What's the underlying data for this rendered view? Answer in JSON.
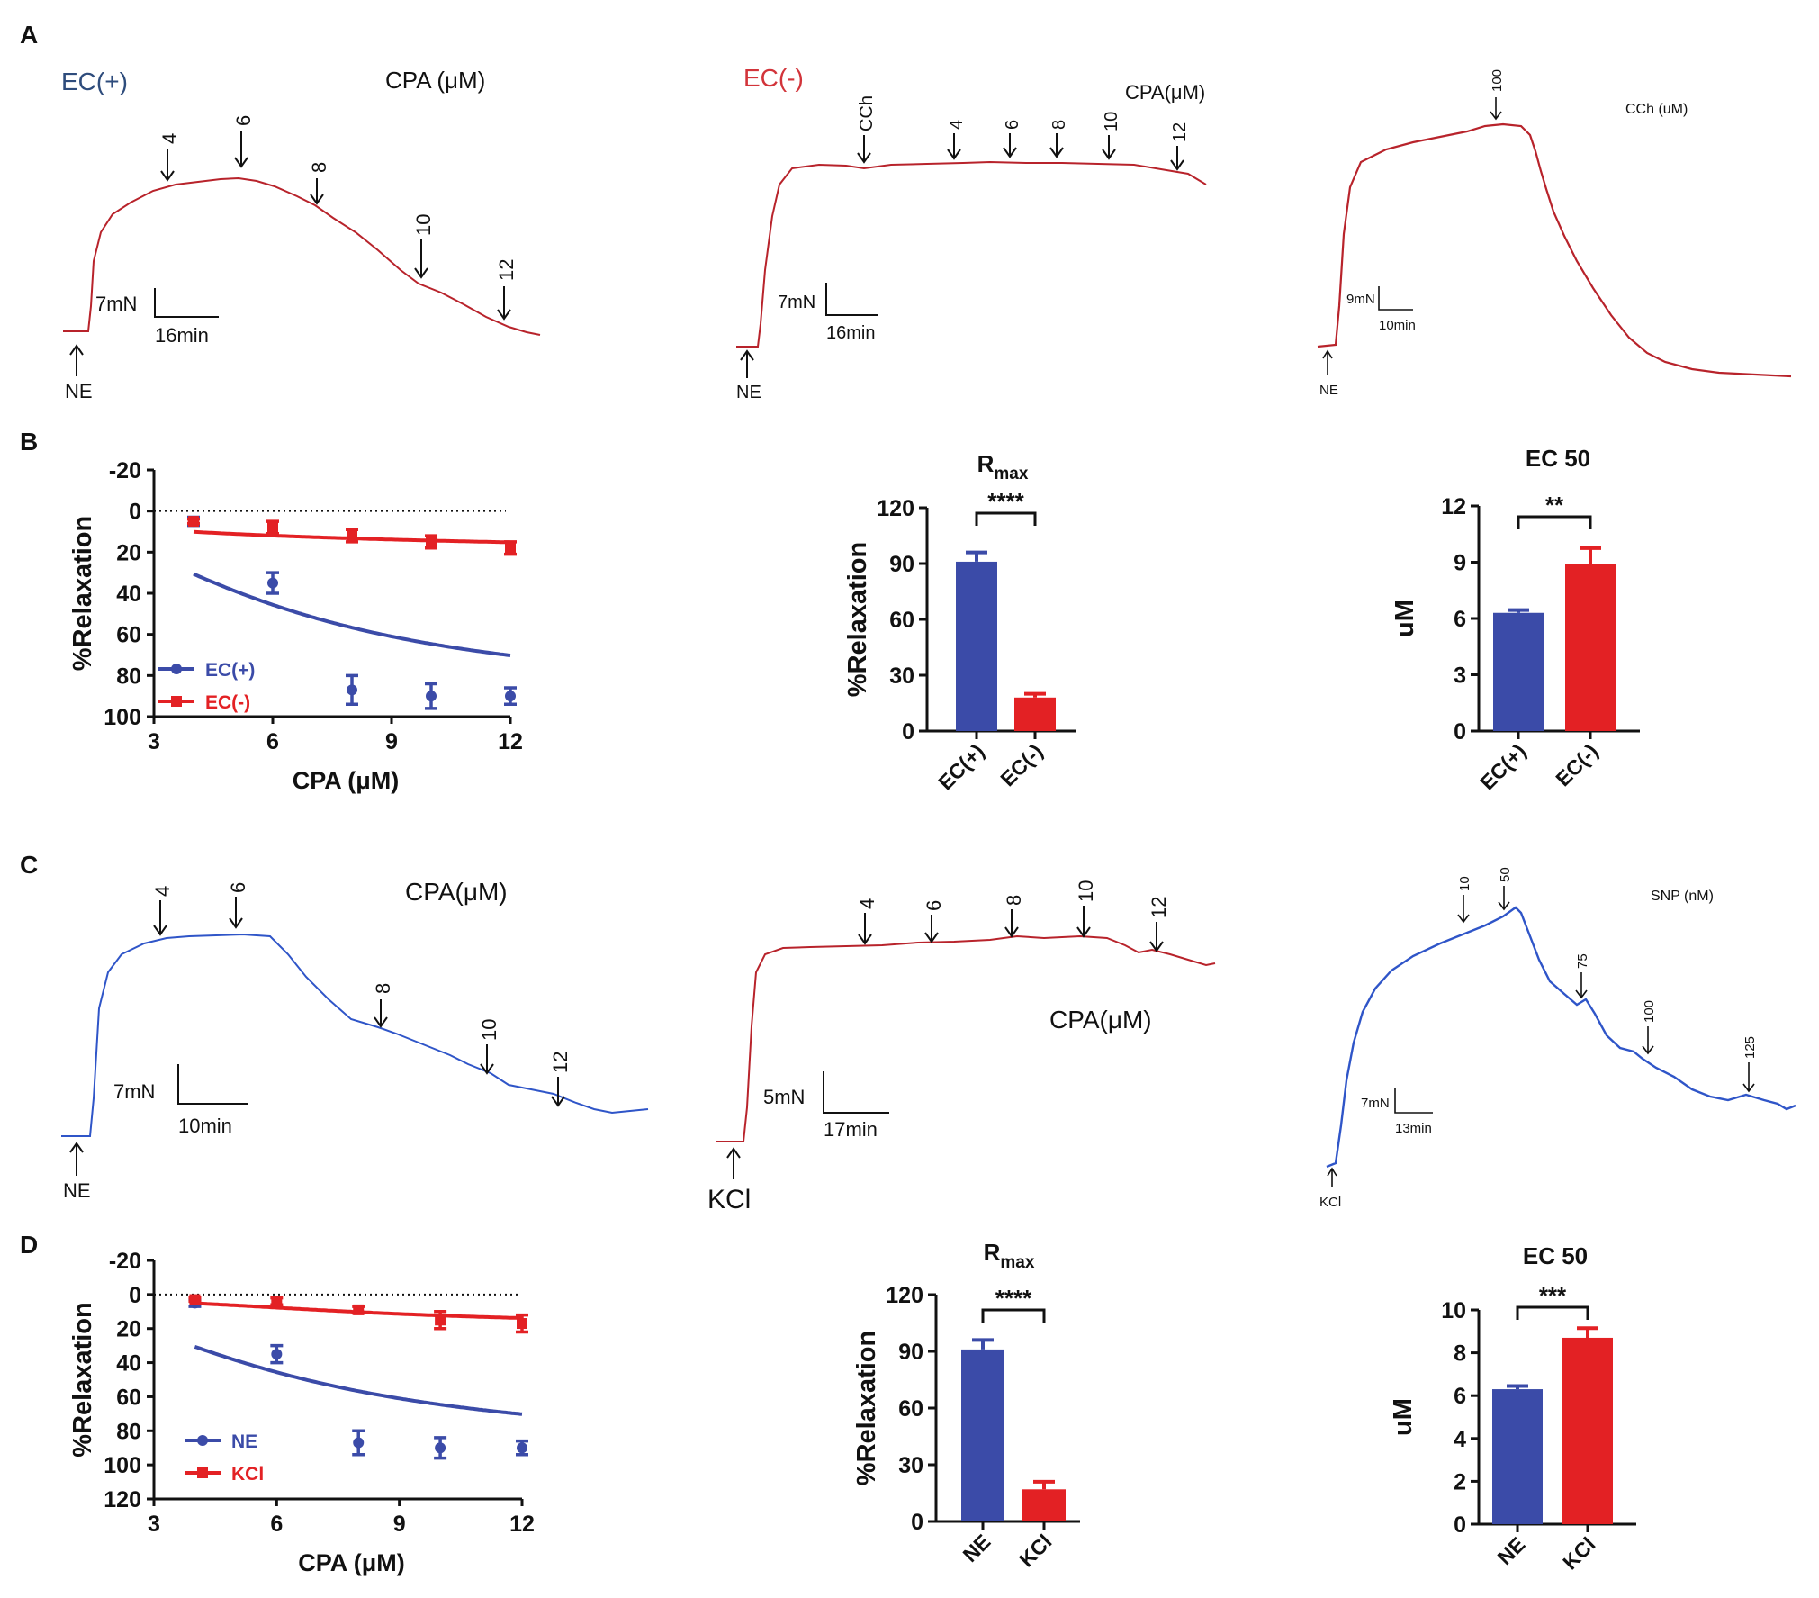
{
  "colors": {
    "blue": "#3B4BA8",
    "red": "#E32124",
    "trace_red": "#B8232B",
    "trace_blue": "#2F55C8",
    "ecplus": "#2E4C7C",
    "ecminus": "#D2343A",
    "black": "#111111"
  },
  "panel_letters": [
    "A",
    "B",
    "C",
    "D"
  ],
  "traces": [
    {
      "id": "A1",
      "header": "EC(+)",
      "label": "CPA (μM)",
      "markers": [
        "4",
        "6",
        "8",
        "10",
        "12"
      ],
      "start": "NE",
      "scale_y": "7mN",
      "scale_x": "16min"
    },
    {
      "id": "A2",
      "header": "EC(-)",
      "label": "CPA(μM)",
      "markers": [
        "CCh",
        "4",
        "6",
        "8",
        "10",
        "12"
      ],
      "start": "NE",
      "scale_y": "7mN",
      "scale_x": "16min"
    },
    {
      "id": "A3",
      "label": "CCh (uM)",
      "markers": [
        "100"
      ],
      "start": "NE",
      "scale_y": "9mN",
      "scale_x": "10min"
    },
    {
      "id": "C1",
      "label": "CPA(μM)",
      "markers": [
        "4",
        "6",
        "8",
        "10",
        "12"
      ],
      "start": "NE",
      "scale_y": "7mN",
      "scale_x": "10min"
    },
    {
      "id": "C2",
      "label": "CPA(μM)",
      "markers": [
        "4",
        "6",
        "8",
        "10",
        "12"
      ],
      "start": "KCl",
      "scale_y": "5mN",
      "scale_x": "17min"
    },
    {
      "id": "C3",
      "label": "SNP (nM)",
      "markers": [
        "10",
        "50",
        "75",
        "100",
        "125"
      ],
      "start": "KCl",
      "scale_y": "7mN",
      "scale_x": "13min"
    }
  ],
  "chart_data": [
    {
      "id": "B-curve",
      "type": "line",
      "xlabel": "CPA (μM)",
      "ylabel": "%Relaxation",
      "xlim": [
        3,
        12
      ],
      "ylim": [
        -20,
        100
      ],
      "yinverted": true,
      "xticks": [
        3,
        6,
        9,
        12
      ],
      "yticks": [
        -20,
        0,
        20,
        40,
        60,
        80,
        100
      ],
      "legend_position": "bottom-left",
      "series": [
        {
          "name": "EC(+)",
          "color": "blue",
          "x": [
            4,
            6,
            8,
            10,
            12
          ],
          "y": [
            5,
            35,
            87,
            90,
            90
          ],
          "err": [
            2,
            5,
            7,
            6,
            4
          ],
          "fit": {
            "bottom": 4,
            "top": 91,
            "ec50": 6.3,
            "hill": 1.8
          }
        },
        {
          "name": "EC(-)",
          "color": "red",
          "x": [
            4,
            6,
            8,
            10,
            12
          ],
          "y": [
            5,
            8,
            12,
            15,
            18
          ],
          "err": [
            1,
            3,
            3,
            3,
            3
          ],
          "fit": {
            "bottom": 5,
            "top": 21,
            "ec50": 7.5,
            "hill": 1.2
          }
        }
      ]
    },
    {
      "id": "B-rmax",
      "type": "bar",
      "title": "Rmax",
      "title_main": "R",
      "title_sub": "max",
      "ylabel": "%Relaxation",
      "categories": [
        "EC(+)",
        "EC(-)"
      ],
      "values": [
        91,
        18
      ],
      "errors": [
        5,
        2
      ],
      "colors": [
        "blue",
        "red"
      ],
      "ylim": [
        0,
        120
      ],
      "yticks": [
        0,
        30,
        60,
        90,
        120
      ],
      "significance": "****"
    },
    {
      "id": "B-ec50",
      "type": "bar",
      "title": "EC 50",
      "ylabel": "uM",
      "categories": [
        "EC(+)",
        "EC(-)"
      ],
      "values": [
        6.3,
        8.9
      ],
      "errors": [
        0.15,
        0.85
      ],
      "colors": [
        "blue",
        "red"
      ],
      "ylim": [
        0,
        12
      ],
      "yticks": [
        0,
        3,
        6,
        9,
        12
      ],
      "significance": "**"
    },
    {
      "id": "D-curve",
      "type": "line",
      "xlabel": "CPA (μM)",
      "ylabel": "%Relaxation",
      "xlim": [
        3,
        12
      ],
      "ylim": [
        -20,
        120
      ],
      "yinverted": true,
      "xticks": [
        3,
        6,
        9,
        12
      ],
      "yticks": [
        -20,
        0,
        20,
        40,
        60,
        80,
        100,
        120
      ],
      "legend_position": "bottom-left",
      "series": [
        {
          "name": "NE",
          "color": "blue",
          "x": [
            4,
            6,
            8,
            10,
            12
          ],
          "y": [
            5,
            35,
            87,
            90,
            90
          ],
          "err": [
            2,
            5,
            7,
            6,
            4
          ],
          "fit": {
            "bottom": 4,
            "top": 91,
            "ec50": 6.3,
            "hill": 1.8
          }
        },
        {
          "name": "KCl",
          "color": "red",
          "x": [
            4,
            6,
            8,
            10,
            12
          ],
          "y": [
            3,
            4,
            9,
            15,
            17
          ],
          "err": [
            1,
            2,
            2,
            5,
            5
          ],
          "fit": {
            "bottom": 3,
            "top": 18,
            "ec50": 8.2,
            "hill": 2.5
          }
        }
      ]
    },
    {
      "id": "D-rmax",
      "type": "bar",
      "title": "Rmax",
      "title_main": "R",
      "title_sub": "max",
      "ylabel": "%Relaxation",
      "categories": [
        "NE",
        "KCl"
      ],
      "values": [
        91,
        17
      ],
      "errors": [
        5,
        4
      ],
      "colors": [
        "blue",
        "red"
      ],
      "ylim": [
        0,
        120
      ],
      "yticks": [
        0,
        30,
        60,
        90,
        120
      ],
      "significance": "****"
    },
    {
      "id": "D-ec50",
      "type": "bar",
      "title": "EC 50",
      "ylabel": "uM",
      "categories": [
        "NE",
        "KCl"
      ],
      "values": [
        6.3,
        8.7
      ],
      "errors": [
        0.15,
        0.45
      ],
      "colors": [
        "blue",
        "red"
      ],
      "ylim": [
        0,
        10
      ],
      "yticks": [
        0,
        2,
        4,
        6,
        8,
        10
      ],
      "significance": "***"
    }
  ]
}
